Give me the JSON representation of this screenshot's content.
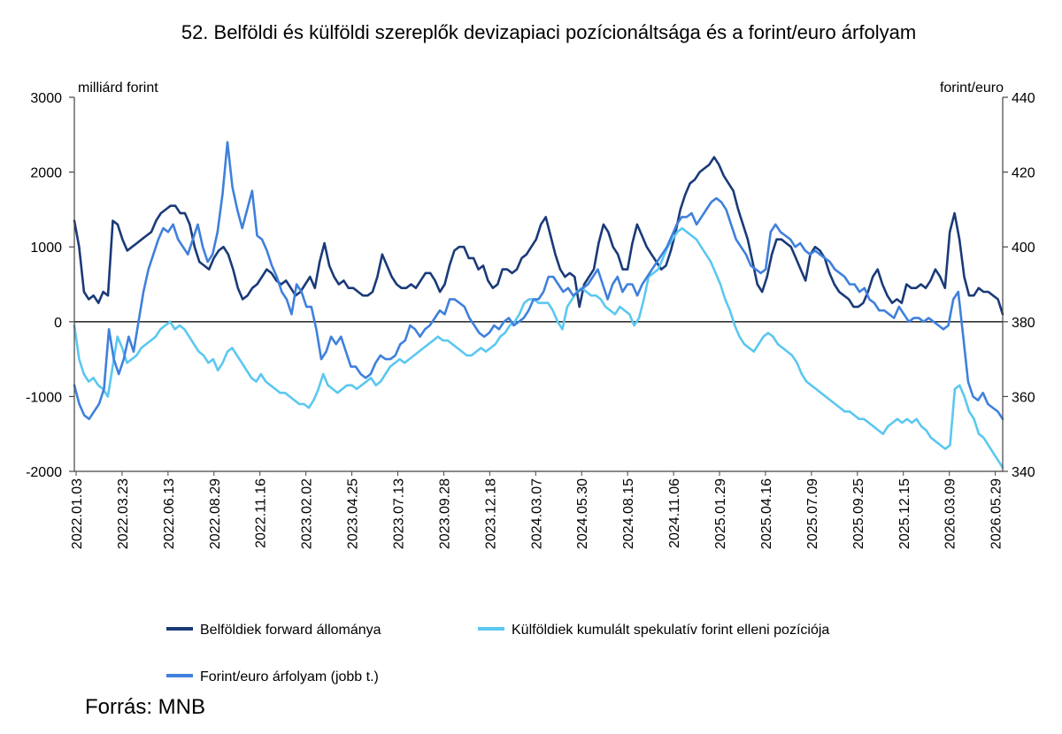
{
  "source": "Forrás: MNB",
  "chart_data": {
    "type": "line",
    "title": "52. Belföldi és külföldi szereplők devizapiaci pozícionáltsága és a forint/euro árfolyam",
    "left_unit": "milliárd forint",
    "right_unit": "forint/euro",
    "y_left": {
      "min": -2000,
      "max": 3000,
      "ticks": [
        3000,
        2000,
        1000,
        0,
        -1000,
        -2000
      ]
    },
    "y_right": {
      "min": 340,
      "max": 440,
      "ticks": [
        440,
        420,
        400,
        380,
        360,
        340
      ]
    },
    "x_tick_labels": [
      "2022.01.03",
      "2022.03.23",
      "2022.06.13",
      "2022.08.29",
      "2022.11.16",
      "2023.02.02",
      "2023.04.25",
      "2023.07.13",
      "2023.09.28",
      "2023.12.18",
      "2024.03.07",
      "2024.05.30",
      "2024.08.15",
      "2024.11.06",
      "2025.01.29",
      "2025.04.16",
      "2025.07.09",
      "2025.09.25",
      "2025.12.15",
      "2026.03.09",
      "2026.05.29"
    ],
    "legend": "bottom",
    "grid": false,
    "series": [
      {
        "name": "Belföldiek forward állománya",
        "axis": "left",
        "color": "#1a3a78",
        "values": [
          1350,
          1000,
          400,
          300,
          350,
          250,
          400,
          350,
          1350,
          1300,
          1100,
          950,
          1000,
          1050,
          1100,
          1150,
          1200,
          1350,
          1450,
          1500,
          1550,
          1550,
          1450,
          1450,
          1300,
          1000,
          800,
          750,
          700,
          850,
          950,
          1000,
          900,
          700,
          450,
          300,
          350,
          450,
          500,
          600,
          700,
          650,
          550,
          500,
          550,
          450,
          350,
          400,
          500,
          600,
          450,
          800,
          1050,
          750,
          600,
          500,
          550,
          450,
          450,
          400,
          350,
          350,
          400,
          600,
          900,
          750,
          600,
          500,
          450,
          450,
          500,
          450,
          550,
          650,
          650,
          550,
          400,
          500,
          750,
          950,
          1000,
          1000,
          850,
          850,
          700,
          750,
          550,
          450,
          500,
          700,
          700,
          650,
          700,
          850,
          900,
          1000,
          1100,
          1300,
          1400,
          1150,
          900,
          700,
          600,
          650,
          600,
          200,
          500,
          600,
          700,
          1050,
          1300,
          1200,
          1000,
          900,
          700,
          700,
          1050,
          1300,
          1150,
          1000,
          900,
          800,
          700,
          750,
          950,
          1200,
          1500,
          1700,
          1850,
          1900,
          2000,
          2050,
          2100,
          2200,
          2100,
          1950,
          1850,
          1750,
          1500,
          1300,
          1100,
          800,
          500,
          400,
          600,
          900,
          1100,
          1100,
          1050,
          1000,
          850,
          700,
          550,
          900,
          1000,
          950,
          850,
          650,
          500,
          400,
          350,
          300,
          200,
          200,
          250,
          400,
          600,
          700,
          500,
          350,
          250,
          300,
          250,
          500,
          450,
          450,
          500,
          450,
          550,
          700,
          600,
          450,
          1200,
          1450,
          1100,
          600,
          350,
          350,
          450,
          400,
          400,
          350,
          300,
          100
        ]
      },
      {
        "name": "Külföldiek kumulált spekulatív forint elleni pozíciója",
        "axis": "left",
        "color": "#5ac8f0",
        "values": [
          -50,
          -500,
          -700,
          -800,
          -750,
          -850,
          -900,
          -1000,
          -600,
          -200,
          -350,
          -550,
          -500,
          -450,
          -350,
          -300,
          -250,
          -200,
          -100,
          -50,
          0,
          -100,
          -50,
          -100,
          -200,
          -300,
          -400,
          -450,
          -550,
          -500,
          -650,
          -550,
          -400,
          -350,
          -450,
          -550,
          -650,
          -750,
          -800,
          -700,
          -800,
          -850,
          -900,
          -950,
          -950,
          -1000,
          -1050,
          -1100,
          -1100,
          -1150,
          -1050,
          -900,
          -700,
          -850,
          -900,
          -950,
          -900,
          -850,
          -850,
          -900,
          -850,
          -800,
          -750,
          -850,
          -800,
          -700,
          -600,
          -550,
          -500,
          -550,
          -500,
          -450,
          -400,
          -350,
          -300,
          -250,
          -200,
          -250,
          -250,
          -300,
          -350,
          -400,
          -450,
          -450,
          -400,
          -350,
          -400,
          -350,
          -300,
          -200,
          -150,
          -50,
          0,
          100,
          250,
          300,
          300,
          250,
          250,
          250,
          150,
          0,
          -100,
          200,
          300,
          400,
          450,
          400,
          350,
          350,
          300,
          200,
          150,
          100,
          200,
          150,
          100,
          -50,
          50,
          300,
          600,
          650,
          700,
          850,
          1000,
          1100,
          1200,
          1250,
          1200,
          1150,
          1100,
          1000,
          900,
          800,
          650,
          500,
          300,
          150,
          -50,
          -200,
          -300,
          -350,
          -400,
          -300,
          -200,
          -150,
          -200,
          -300,
          -350,
          -400,
          -450,
          -550,
          -700,
          -800,
          -850,
          -900,
          -950,
          -1000,
          -1050,
          -1100,
          -1150,
          -1200,
          -1200,
          -1250,
          -1300,
          -1300,
          -1350,
          -1400,
          -1450,
          -1500,
          -1400,
          -1350,
          -1300,
          -1350,
          -1300,
          -1350,
          -1300,
          -1400,
          -1450,
          -1550,
          -1600,
          -1650,
          -1700,
          -1650,
          -900,
          -850,
          -1000,
          -1200,
          -1300,
          -1500,
          -1550,
          -1650,
          -1750,
          -1850,
          -1950
        ]
      },
      {
        "name": "Forint/euro árfolyam (jobb t.)",
        "axis": "right",
        "color": "#3f80dc",
        "values": [
          363,
          358,
          355,
          354,
          356,
          358,
          362,
          378,
          370,
          366,
          370,
          376,
          372,
          380,
          388,
          394,
          398,
          402,
          405,
          404,
          406,
          402,
          400,
          398,
          402,
          406,
          400,
          396,
          398,
          404,
          414,
          428,
          416,
          410,
          405,
          410,
          415,
          403,
          402,
          399,
          395,
          392,
          388,
          386,
          382,
          390,
          388,
          384,
          384,
          378,
          370,
          372,
          376,
          374,
          376,
          372,
          368,
          368,
          366,
          365,
          366,
          369,
          371,
          370,
          370,
          371,
          374,
          375,
          379,
          378,
          376,
          378,
          379,
          381,
          383,
          382,
          386,
          386,
          385,
          384,
          381,
          379,
          377,
          376,
          377,
          379,
          378,
          380,
          381,
          379,
          380,
          381,
          383,
          386,
          386,
          388,
          392,
          392,
          390,
          388,
          389,
          387,
          388,
          389,
          390,
          392,
          394,
          390,
          386,
          390,
          392,
          388,
          390,
          390,
          387,
          390,
          392,
          394,
          396,
          398,
          400,
          403,
          406,
          408,
          408,
          409,
          406,
          408,
          410,
          412,
          413,
          412,
          410,
          406,
          402,
          400,
          398,
          395,
          394,
          393,
          394,
          404,
          406,
          404,
          403,
          402,
          400,
          401,
          399,
          398,
          399,
          398,
          397,
          396,
          394,
          393,
          392,
          390,
          390,
          388,
          389,
          386,
          385,
          383,
          383,
          382,
          381,
          384,
          382,
          380,
          381,
          381,
          380,
          381,
          380,
          379,
          378,
          379,
          386,
          388,
          376,
          364,
          360,
          359,
          361,
          358,
          357,
          356,
          354
        ]
      }
    ]
  }
}
